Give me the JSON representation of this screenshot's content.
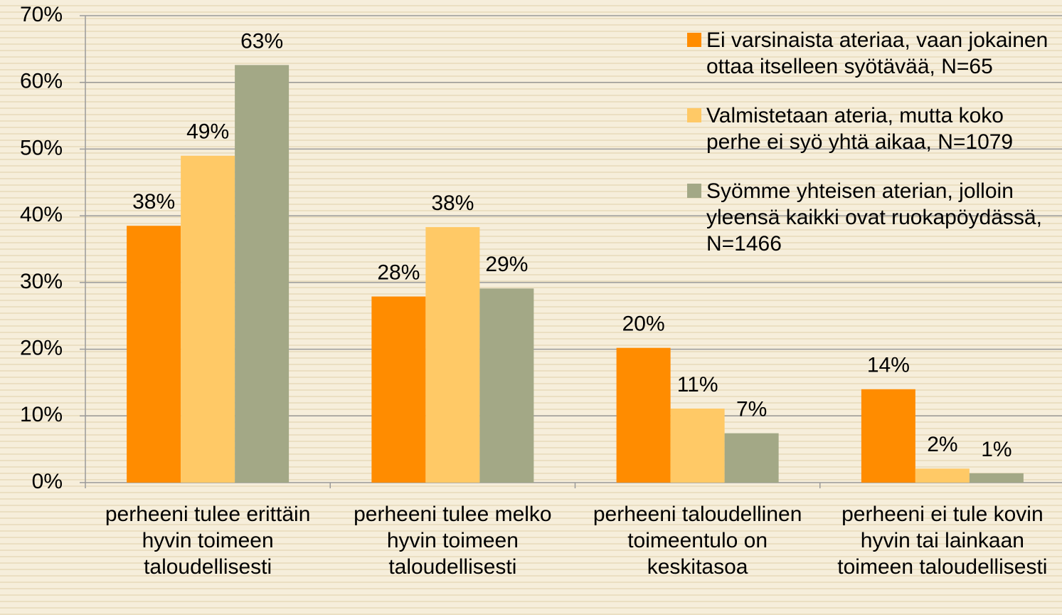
{
  "chart_data": {
    "type": "bar",
    "categories": [
      "perheeni tulee erittäin hyvin toimeen taloudellisesti",
      "perheeni tulee melko hyvin toimeen taloudellisesti",
      "perheeni taloudellinen toimeentulo on keskitasoa",
      "perheeni ei tule kovin hyvin tai lainkaan toimeen taloudellisesti"
    ],
    "series": [
      {
        "name": "Ei varsinaista ateriaa, vaan jokainen ottaa itselleen syötävää, N=65",
        "color": "#ff8c00",
        "values": [
          38.5,
          27.9,
          20.2,
          14.0
        ],
        "value_labels": [
          "38%",
          "28%",
          "20%",
          "14%"
        ]
      },
      {
        "name": "Valmistetaan ateria, mutta koko perhe ei syö yhtä aikaa, N=1079",
        "color": "#ffc966",
        "values": [
          49.0,
          38.3,
          11.1,
          2.1
        ],
        "value_labels": [
          "49%",
          "38%",
          "11%",
          "2%"
        ]
      },
      {
        "name": "Syömme yhteisen aterian, jolloin yleensä kaikki ovat ruokapöydässä, N=1466",
        "color": "#a3a886",
        "values": [
          62.6,
          29.1,
          7.4,
          1.4
        ],
        "value_labels": [
          "63%",
          "29%",
          "7%",
          "1%"
        ]
      }
    ],
    "ylim": [
      0,
      70
    ],
    "yticks": [
      {
        "value": 0,
        "label": "0%"
      },
      {
        "value": 10,
        "label": "10%"
      },
      {
        "value": 20,
        "label": "20%"
      },
      {
        "value": 30,
        "label": "30%"
      },
      {
        "value": 40,
        "label": "40%"
      },
      {
        "value": 50,
        "label": "50%"
      },
      {
        "value": 60,
        "label": "60%"
      },
      {
        "value": 70,
        "label": "70%"
      }
    ],
    "grid": true,
    "legend": "top-right"
  }
}
